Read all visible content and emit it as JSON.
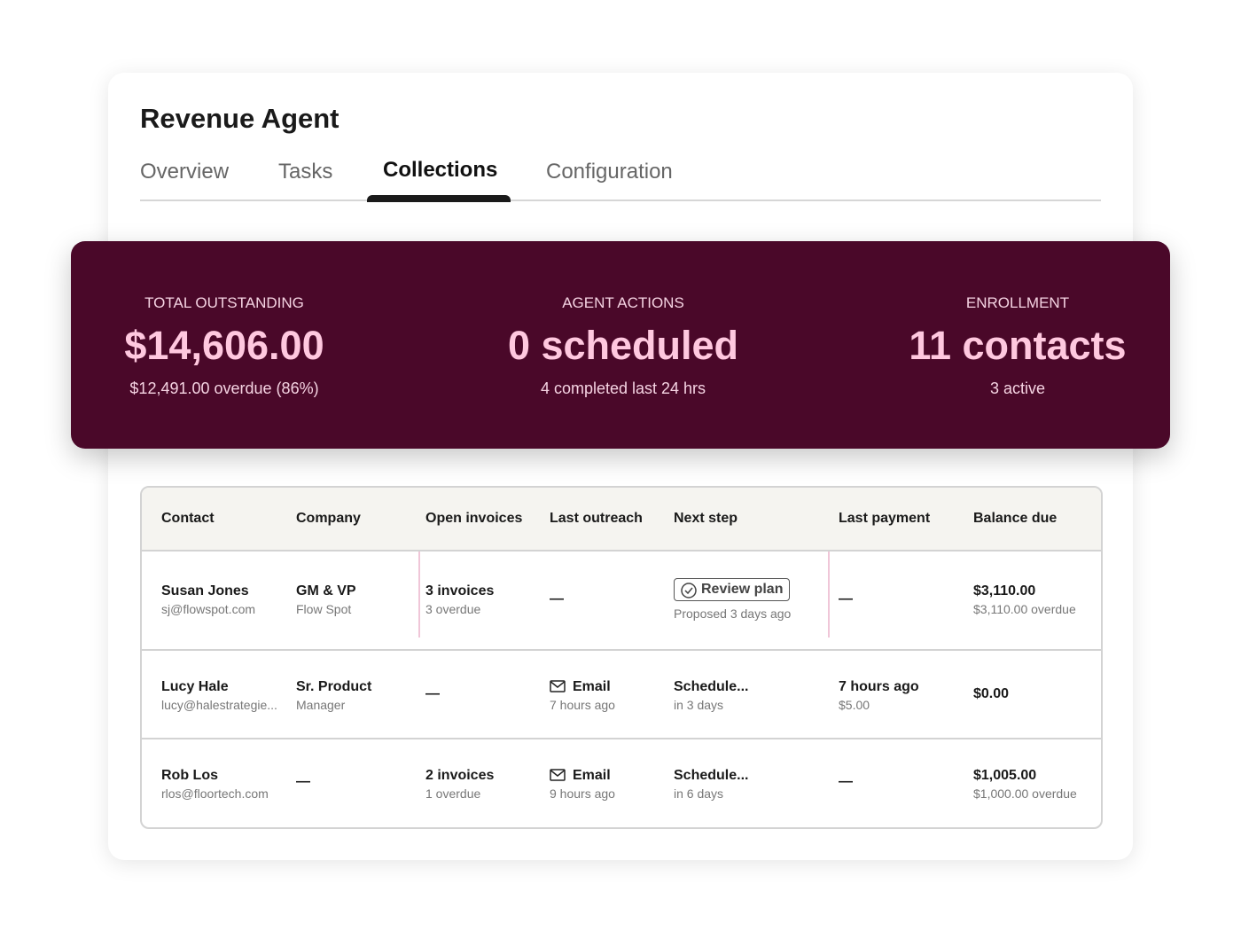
{
  "header": {
    "title": "Revenue Agent",
    "tabs": [
      "Overview",
      "Tasks",
      "Collections",
      "Configuration"
    ],
    "active_tab": 2
  },
  "summary": [
    {
      "label": "TOTAL OUTSTANDING",
      "value": "$14,606.00",
      "note": "$12,491.00 overdue (86%)"
    },
    {
      "label": "AGENT ACTIONS",
      "value": "0 scheduled",
      "note": "4 completed last 24 hrs"
    },
    {
      "label": "ENROLLMENT",
      "value": "11 contacts",
      "note": "3 active"
    }
  ],
  "table": {
    "headers": [
      "Contact",
      "Company",
      "Open invoices",
      "Last outreach",
      "Next step",
      "Last payment",
      "Balance due"
    ],
    "rows": [
      [
        {
          "main": "Susan Jones",
          "sub": "sj@flowspot.com"
        },
        {
          "main": "GM & VP",
          "sub": "Flow Spot"
        },
        {
          "main": "3 invoices",
          "sub": "3 overdue"
        },
        {
          "main": "—"
        },
        {
          "main": "Review plan",
          "sub": "Proposed 3 days ago",
          "icon": "check"
        },
        {
          "main": "—"
        },
        {
          "main": "$3,110.00",
          "sub": "$3,110.00 overdue"
        }
      ],
      [
        {
          "main": "Lucy Hale",
          "sub": "lucy@halestrategie..."
        },
        {
          "main": "Sr. Product",
          "sub": "Manager"
        },
        {
          "main": "—"
        },
        {
          "main": "Email",
          "sub": "7 hours ago",
          "icon": "email"
        },
        {
          "main": "Schedule...",
          "sub": "in 3 days"
        },
        {
          "main": "7 hours ago",
          "sub": "$5.00"
        },
        {
          "main": "$0.00"
        }
      ],
      [
        {
          "main": "Rob Los",
          "sub": "rlos@floortech.com"
        },
        {
          "main": "—"
        },
        {
          "main": "2 invoices",
          "sub": "1 overdue"
        },
        {
          "main": "Email",
          "sub": "9 hours ago",
          "icon": "email"
        },
        {
          "main": "Schedule...",
          "sub": "in 6 days"
        },
        {
          "main": "—"
        },
        {
          "main": "$1,005.00",
          "sub": "$1,000.00 overdue"
        }
      ]
    ]
  }
}
